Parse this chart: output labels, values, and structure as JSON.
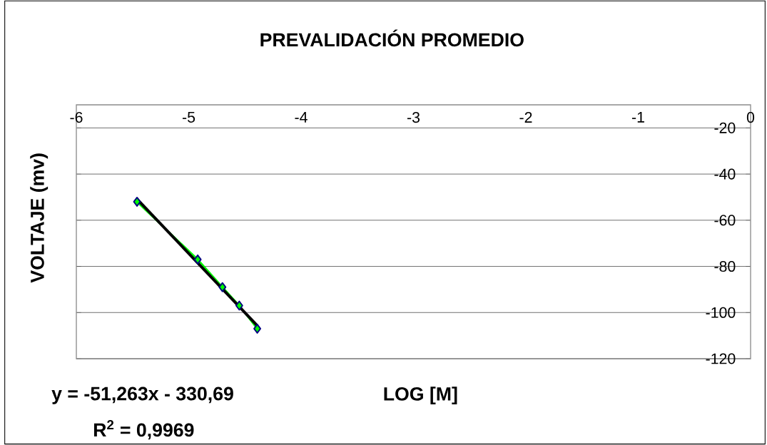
{
  "chart_data": {
    "type": "line",
    "title": "PREVALIDACIÓN PROMEDIO",
    "xlabel": "LOG [M]",
    "ylabel": "VOLTAJE (mv)",
    "annotations": [
      "y = -51,263x - 330,69",
      "R$^{2}$ = 0,9969"
    ],
    "xlim": [
      -6,
      0
    ],
    "xticks": [
      -6,
      -5,
      -4,
      -3,
      -2,
      -1,
      0
    ],
    "ylim": [
      -120,
      -10
    ],
    "yticks": [
      -120,
      -100,
      -80,
      -60,
      -40,
      -20
    ],
    "grid": "y",
    "marker": "diamond",
    "series": [
      {
        "color": "#00ff00",
        "x": [
          -5.46,
          -4.92,
          -4.7,
          -4.55,
          -4.39
        ],
        "values": [
          -52,
          -77,
          -89,
          -97,
          -107
        ]
      },
      {
        "type": "line",
        "color": "#000000",
        "marker": "none",
        "x": [
          -5.46,
          -4.39
        ],
        "values": [
          -50.8,
          -105.7
        ]
      }
    ]
  }
}
